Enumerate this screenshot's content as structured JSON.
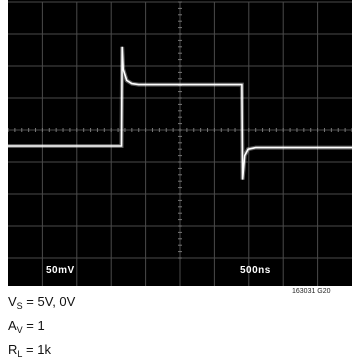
{
  "scope": {
    "volts_per_div": "50mV",
    "time_per_div": "500ns",
    "figure_id": "163031 G20"
  },
  "conditions": [
    {
      "main": "V",
      "sub": "S",
      "rest": " = 5V, 0V"
    },
    {
      "main": "A",
      "sub": "V",
      "rest": " = 1"
    },
    {
      "main": "R",
      "sub": "L",
      "rest": " = 1k"
    }
  ],
  "chart_data": {
    "type": "line",
    "title": "",
    "xlabel": "500ns",
    "ylabel": "50mV",
    "x_divisions": 10,
    "y_divisions": 8,
    "xlim": [
      0,
      10
    ],
    "ylim": [
      -4,
      4
    ],
    "grid": true,
    "series": [
      {
        "values_divisions": [
          [
            0.0,
            -0.5
          ],
          [
            0.75,
            -0.5
          ],
          [
            0.8,
            -0.5
          ],
          [
            1.5,
            -0.5
          ],
          [
            2.5,
            -0.5
          ],
          [
            3.3,
            -0.5
          ],
          [
            3.32,
            2.6
          ],
          [
            3.35,
            1.9
          ],
          [
            3.45,
            1.55
          ],
          [
            3.6,
            1.45
          ],
          [
            3.8,
            1.42
          ],
          [
            5.0,
            1.42
          ],
          [
            6.0,
            1.42
          ],
          [
            6.8,
            1.42
          ],
          [
            6.82,
            -1.55
          ],
          [
            6.88,
            -0.8
          ],
          [
            6.98,
            -0.6
          ],
          [
            7.2,
            -0.55
          ],
          [
            8.0,
            -0.55
          ],
          [
            9.0,
            -0.55
          ],
          [
            10.0,
            -0.55
          ]
        ]
      }
    ]
  }
}
